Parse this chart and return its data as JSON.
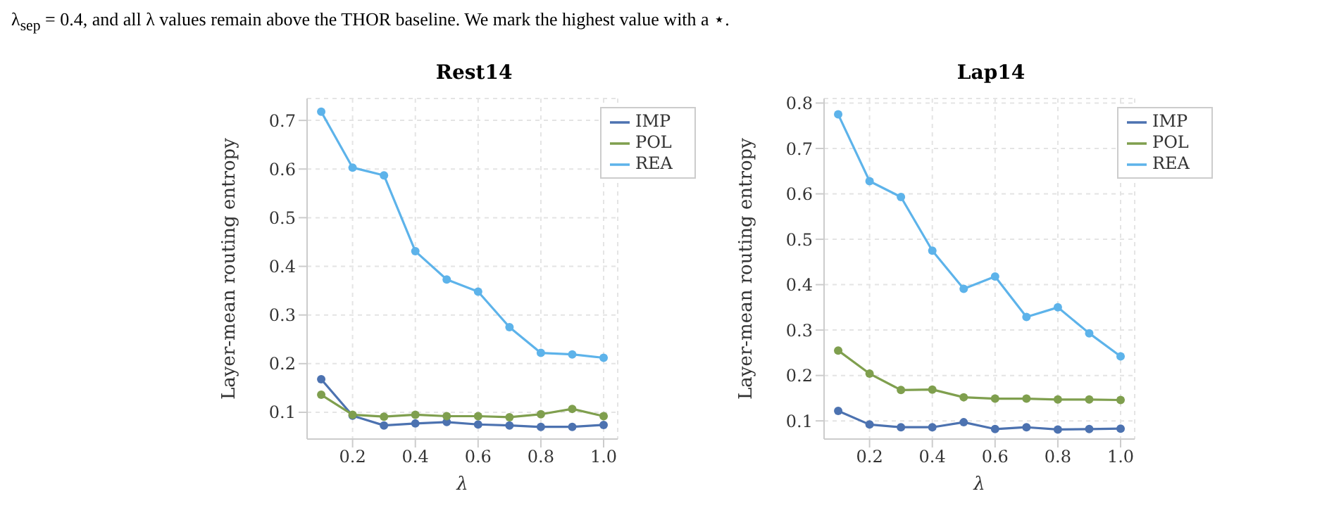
{
  "chart_data": [
    {
      "type": "line",
      "title": "Rest14",
      "xlabel": "λ",
      "ylabel": "Layer-mean routing entropy",
      "annotations": [
        "λ$_{sep}$ = 0.4, and all λ values remain above the THOR baseline. We mark the highest value with a ⋆."
      ],
      "x": [
        0.1,
        0.2,
        0.3,
        0.4,
        0.5,
        0.6,
        0.7,
        0.8,
        0.9,
        1.0
      ],
      "xlim": [
        0.055,
        1.045
      ],
      "xticks": [
        0.2,
        0.4,
        0.6,
        0.8,
        {
          "value": 1,
          "label": "1.0"
        }
      ],
      "ylim": [
        0.045,
        0.745
      ],
      "yticks": [
        0.1,
        0.2,
        0.3,
        0.4,
        0.5,
        0.6,
        0.7
      ],
      "grid": true,
      "legend": "top right",
      "marker": "circle",
      "series": [
        {
          "name": "IMP",
          "color": "#4c72b0",
          "values": [
            0.168,
            0.093,
            0.073,
            0.077,
            0.08,
            0.075,
            0.073,
            0.07,
            0.07,
            0.074
          ]
        },
        {
          "name": "POL",
          "color": "#7f9f4e",
          "values": [
            0.136,
            0.095,
            0.091,
            0.095,
            0.092,
            0.092,
            0.09,
            0.096,
            0.107,
            0.092
          ]
        },
        {
          "name": "REA",
          "color": "#5db3ea",
          "values": [
            0.718,
            0.603,
            0.587,
            0.431,
            0.373,
            0.348,
            0.275,
            0.222,
            0.219,
            0.212
          ]
        }
      ]
    },
    {
      "type": "line",
      "title": "Lap14",
      "xlabel": "λ",
      "ylabel": "Layer-mean routing entropy",
      "x": [
        0.1,
        0.2,
        0.3,
        0.4,
        0.5,
        0.6,
        0.7,
        0.8,
        0.9,
        1.0
      ],
      "xlim": [
        0.055,
        1.045
      ],
      "xticks": [
        0.2,
        0.4,
        0.6,
        0.8,
        {
          "value": 1,
          "label": "1.0"
        }
      ],
      "ylim": [
        0.06,
        0.81
      ],
      "yticks": [
        0.1,
        0.2,
        0.3,
        0.4,
        0.5,
        0.6,
        0.7,
        0.8
      ],
      "grid": true,
      "legend": "top right",
      "marker": "circle",
      "series": [
        {
          "name": "IMP",
          "color": "#4c72b0",
          "values": [
            0.122,
            0.092,
            0.086,
            0.086,
            0.097,
            0.082,
            0.086,
            0.081,
            0.082,
            0.083
          ]
        },
        {
          "name": "POL",
          "color": "#7f9f4e",
          "values": [
            0.255,
            0.204,
            0.168,
            0.169,
            0.152,
            0.149,
            0.149,
            0.147,
            0.147,
            0.146
          ]
        },
        {
          "name": "REA",
          "color": "#5db3ea",
          "values": [
            0.775,
            0.628,
            0.593,
            0.475,
            0.391,
            0.418,
            0.329,
            0.35,
            0.293,
            0.242
          ]
        }
      ]
    }
  ]
}
